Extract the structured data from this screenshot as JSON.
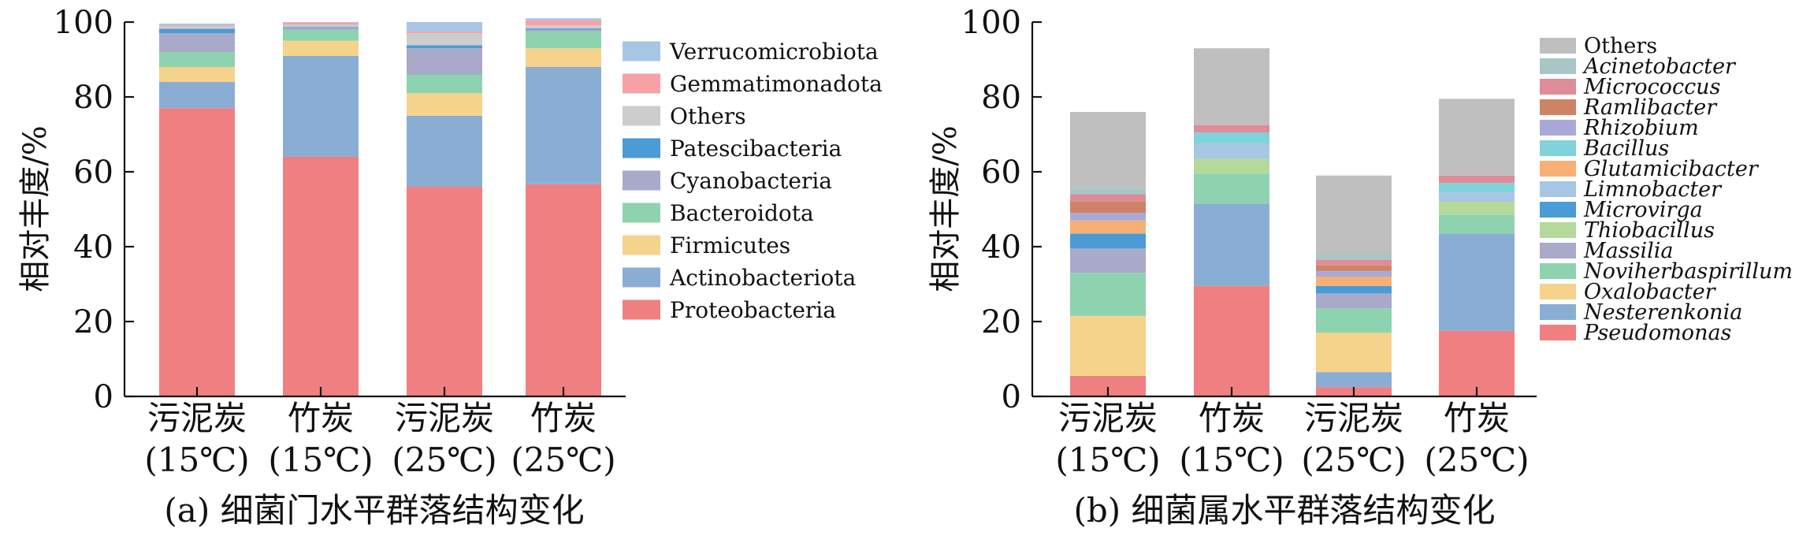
{
  "chart_data": [
    {
      "type": "stacked-bar",
      "panel": "a",
      "caption": "(a) 细菌门水平群落结构变化",
      "ylabel": "相对丰度/%",
      "ylim": [
        0,
        100
      ],
      "yticks": [
        "0",
        "20",
        "40",
        "60",
        "80",
        "100"
      ],
      "categories": [
        {
          "line1": "污泥炭",
          "line2": "(15℃)"
        },
        {
          "line1": "竹炭",
          "line2": "(15℃)"
        },
        {
          "line1": "污泥炭",
          "line2": "(25℃)"
        },
        {
          "line1": "竹炭",
          "line2": "(25℃)"
        }
      ],
      "legend_position": "right",
      "series": [
        {
          "name": "Proteobacteria",
          "color": "#f07f81",
          "values": [
            77,
            64,
            56,
            56.7
          ]
        },
        {
          "name": "Actinobacteriota",
          "color": "#8aaed3",
          "values": [
            7,
            27,
            19,
            31.3
          ]
        },
        {
          "name": "Firmicutes",
          "color": "#f6d38a",
          "values": [
            4,
            4,
            6,
            5
          ]
        },
        {
          "name": "Bacteroidota",
          "color": "#8ed3b0",
          "values": [
            4,
            3,
            5,
            4.5
          ]
        },
        {
          "name": "Cyanobacteria",
          "color": "#a9a9c9",
          "values": [
            5,
            0.5,
            7,
            0.5
          ]
        },
        {
          "name": "Patescibacteria",
          "color": "#4a9bd6",
          "values": [
            1.2,
            0.2,
            0.8,
            0.3
          ]
        },
        {
          "name": "Others",
          "color": "#cdcdcd",
          "values": [
            0.6,
            0.6,
            3.2,
            0.8
          ]
        },
        {
          "name": "Gemmatimonadota",
          "color": "#f7a1a6",
          "values": [
            0.3,
            0.5,
            0.5,
            1.3
          ]
        },
        {
          "name": "Verrucomicrobiota",
          "color": "#a7c6e3",
          "values": [
            0.5,
            0.2,
            2.5,
            0.6
          ]
        }
      ]
    },
    {
      "type": "stacked-bar",
      "panel": "b",
      "caption": "(b) 细菌属水平群落结构变化",
      "ylabel": "相对丰度/%",
      "ylim": [
        0,
        100
      ],
      "yticks": [
        "0",
        "20",
        "40",
        "60",
        "80",
        "100"
      ],
      "categories": [
        {
          "line1": "污泥炭",
          "line2": "(15℃)"
        },
        {
          "line1": "竹炭",
          "line2": "(15℃)"
        },
        {
          "line1": "污泥炭",
          "line2": "(25℃)"
        },
        {
          "line1": "竹炭",
          "line2": "(25℃)"
        }
      ],
      "legend_position": "right",
      "series": [
        {
          "name": "Pseudomonas",
          "italic": true,
          "color": "#f07f81",
          "values": [
            5.5,
            29.5,
            2.5,
            17.5
          ]
        },
        {
          "name": "Nesterenkonia",
          "italic": true,
          "color": "#8aaed3",
          "values": [
            0,
            22,
            4,
            26
          ]
        },
        {
          "name": "Oxalobacter",
          "italic": true,
          "color": "#f6d38a",
          "values": [
            16,
            0,
            10.5,
            0
          ]
        },
        {
          "name": "Noviherbaspirillum",
          "italic": true,
          "color": "#8ed3b0",
          "values": [
            11.5,
            8,
            6.5,
            5
          ]
        },
        {
          "name": "Massilia",
          "italic": true,
          "color": "#a9a9c9",
          "values": [
            6.5,
            0,
            4,
            0
          ]
        },
        {
          "name": "Thiobacillus",
          "italic": true,
          "color": "#b5d99a",
          "values": [
            0,
            4,
            0,
            3.5
          ]
        },
        {
          "name": "Microvirga",
          "italic": true,
          "color": "#4a9bd6",
          "values": [
            4,
            0,
            2,
            0
          ]
        },
        {
          "name": "Limnobacter",
          "italic": true,
          "color": "#a7c6e3",
          "values": [
            0,
            4,
            0,
            2.5
          ]
        },
        {
          "name": "Glutamicibacter",
          "italic": true,
          "color": "#f7b074",
          "values": [
            3.5,
            0,
            2.5,
            0
          ]
        },
        {
          "name": "Bacillus",
          "italic": true,
          "color": "#7fd3d9",
          "values": [
            0,
            3,
            0,
            2.5
          ]
        },
        {
          "name": "Rhizobium",
          "italic": true,
          "color": "#a9a9d9",
          "values": [
            2,
            0,
            1.5,
            0
          ]
        },
        {
          "name": "Ramlibacter",
          "italic": true,
          "color": "#cf8365",
          "values": [
            3,
            0,
            1.5,
            0
          ]
        },
        {
          "name": "Micrococcus",
          "italic": true,
          "color": "#de8c98",
          "values": [
            2,
            2,
            1.5,
            2
          ]
        },
        {
          "name": "Acinetobacter",
          "italic": true,
          "color": "#a8c6c6",
          "values": [
            1.5,
            0,
            1.5,
            0
          ]
        },
        {
          "name": "Others",
          "italic": false,
          "color": "#bfbfbf",
          "values": [
            20.5,
            20.5,
            21,
            20.5
          ]
        }
      ]
    }
  ]
}
